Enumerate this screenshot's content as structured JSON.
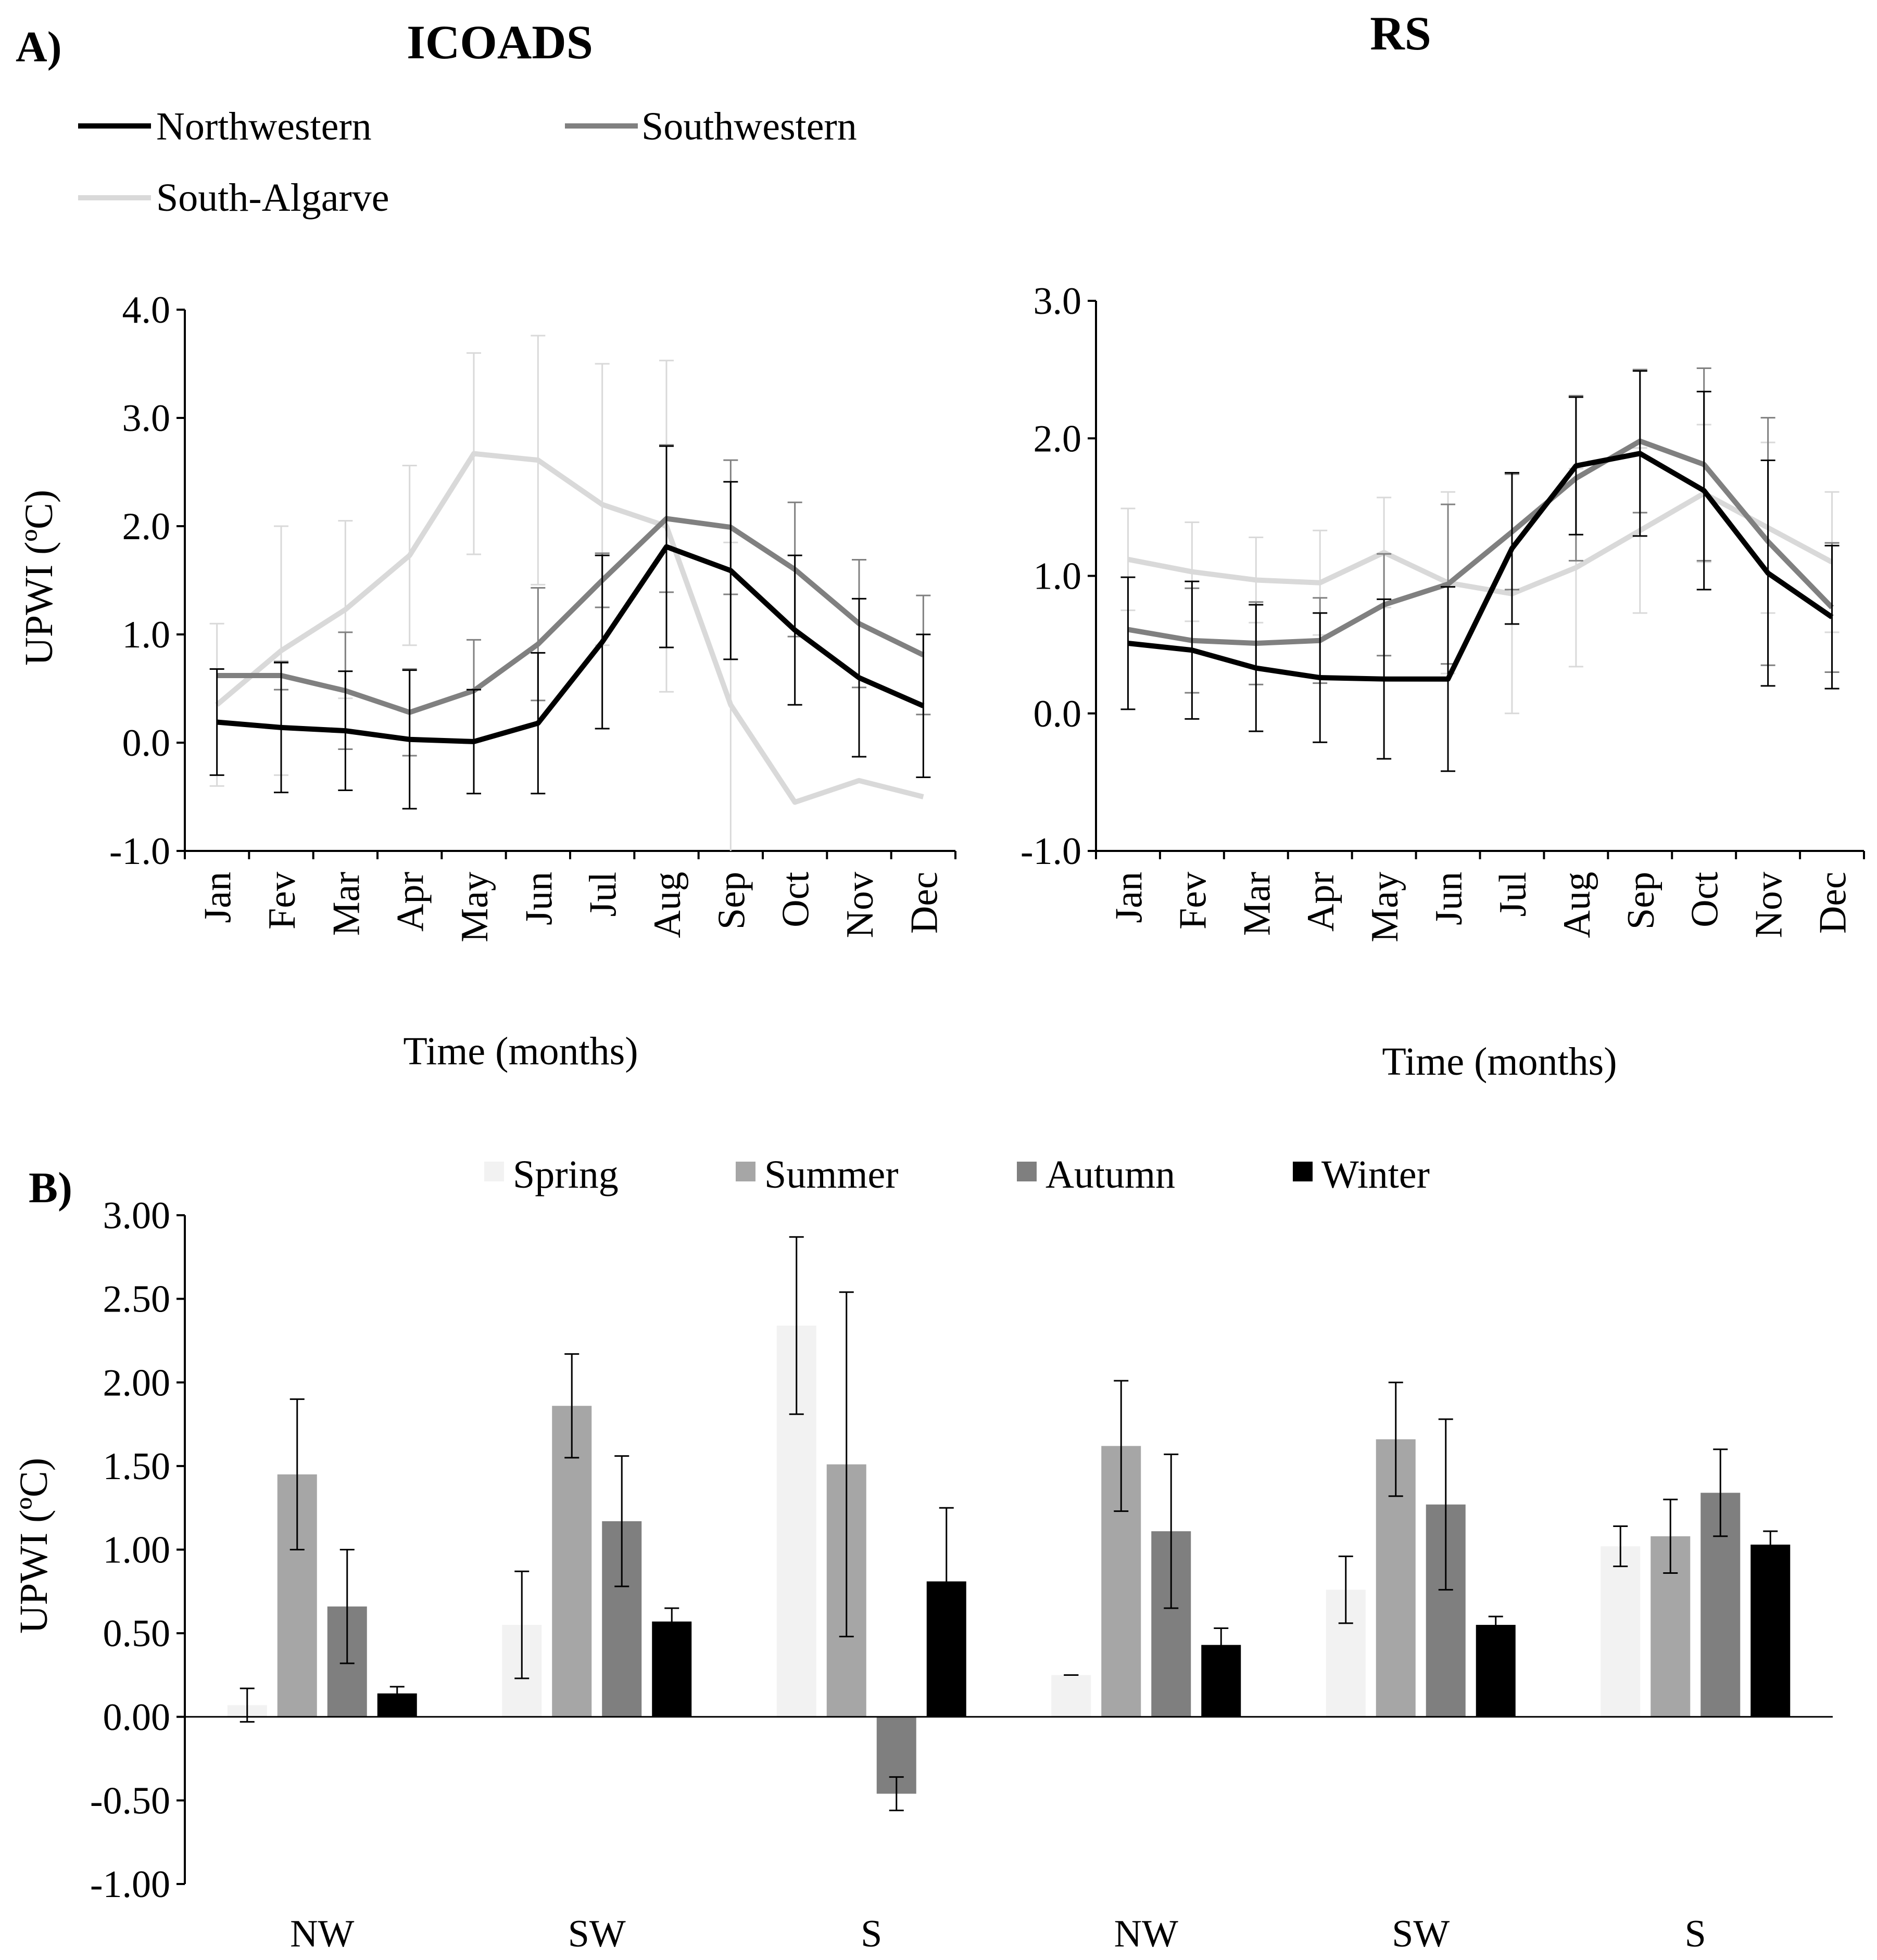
{
  "figure": {
    "panel_a_label": "A)",
    "panel_b_label": "B)"
  },
  "chart_data": [
    {
      "id": "icoads",
      "type": "line",
      "title": "ICOADS",
      "xlabel": "Time (months)",
      "ylabel": "UPWI (ºC)",
      "ylim": [
        -1.0,
        4.0
      ],
      "yticks": [
        "4.0",
        "3.0",
        "2.0",
        "1.0",
        "0.0",
        "-1.0"
      ],
      "ytick_values": [
        4.0,
        3.0,
        2.0,
        1.0,
        0.0,
        -1.0
      ],
      "categories": [
        "Jan",
        "Fev",
        "Mar",
        "Apr",
        "May",
        "Jun",
        "Jul",
        "Aug",
        "Sep",
        "Oct",
        "Nov",
        "Dec"
      ],
      "series": [
        {
          "name": "Northwestern",
          "color": "#000000",
          "values": [
            0.19,
            0.14,
            0.11,
            0.03,
            0.01,
            0.18,
            0.93,
            1.81,
            1.59,
            1.04,
            0.6,
            0.34
          ],
          "errors": [
            0.49,
            0.6,
            0.55,
            0.64,
            0.48,
            0.65,
            0.8,
            0.93,
            0.82,
            0.69,
            0.73,
            0.66
          ]
        },
        {
          "name": "Southwestern",
          "color": "#808080",
          "values": [
            0.62,
            0.62,
            0.48,
            0.28,
            0.48,
            0.91,
            1.5,
            2.07,
            1.99,
            1.6,
            1.1,
            0.81
          ],
          "errors": [
            0.0,
            0.13,
            0.54,
            0.4,
            0.47,
            0.52,
            0.25,
            0.68,
            0.62,
            0.62,
            0.59,
            0.55
          ]
        },
        {
          "name": "South-Algarve",
          "color": "#d9d9d9",
          "values": [
            0.35,
            0.85,
            1.23,
            1.73,
            2.67,
            2.61,
            2.2,
            2.0,
            0.35,
            -0.55,
            -0.35,
            -0.5
          ],
          "errors": [
            0.75,
            1.15,
            0.82,
            0.83,
            0.93,
            1.15,
            1.3,
            1.53,
            1.5,
            0.0,
            0.0,
            0.0
          ]
        }
      ]
    },
    {
      "id": "rs",
      "type": "line",
      "title": "RS",
      "xlabel": "Time (months)",
      "ylabel": "",
      "ylim": [
        -1.0,
        3.0
      ],
      "yticks": [
        "3.0",
        "2.0",
        "1.0",
        "0.0",
        "-1.0"
      ],
      "ytick_values": [
        3.0,
        2.0,
        1.0,
        0.0,
        -1.0
      ],
      "categories": [
        "Jan",
        "Fev",
        "Mar",
        "Apr",
        "May",
        "Jun",
        "Jul",
        "Aug",
        "Sep",
        "Oct",
        "Nov",
        "Dec"
      ],
      "series": [
        {
          "name": "Northwestern",
          "color": "#000000",
          "values": [
            0.51,
            0.46,
            0.33,
            0.26,
            0.25,
            0.25,
            1.2,
            1.8,
            1.89,
            1.62,
            1.02,
            0.7
          ],
          "errors": [
            0.48,
            0.5,
            0.46,
            0.47,
            0.58,
            0.67,
            0.55,
            0.5,
            0.6,
            0.72,
            0.82,
            0.52
          ]
        },
        {
          "name": "Southwestern",
          "color": "#808080",
          "values": [
            0.61,
            0.53,
            0.51,
            0.53,
            0.79,
            0.94,
            1.32,
            1.71,
            1.98,
            1.81,
            1.25,
            0.77
          ],
          "errors": [
            0.0,
            0.38,
            0.3,
            0.31,
            0.37,
            0.58,
            0.42,
            0.6,
            0.52,
            0.7,
            0.9,
            0.47
          ]
        },
        {
          "name": "South-Algarve",
          "color": "#d9d9d9",
          "values": [
            1.12,
            1.03,
            0.97,
            0.95,
            1.17,
            0.95,
            0.87,
            1.06,
            1.33,
            1.6,
            1.35,
            1.1
          ],
          "errors": [
            0.37,
            0.36,
            0.31,
            0.38,
            0.4,
            0.66,
            0.87,
            0.72,
            0.6,
            0.5,
            0.62,
            0.51
          ]
        }
      ]
    },
    {
      "id": "seasonal",
      "type": "bar",
      "title": "",
      "xlabel": "",
      "ylabel": "UPWI (ºC)",
      "ylim": [
        -1.0,
        3.0
      ],
      "yticks": [
        "3.00",
        "2.50",
        "2.00",
        "1.50",
        "1.00",
        "0.50",
        "0.00",
        "-0.50",
        "-1.00"
      ],
      "ytick_values": [
        3.0,
        2.5,
        2.0,
        1.5,
        1.0,
        0.5,
        0.0,
        -0.5,
        -1.0
      ],
      "categories": [
        "NW",
        "SW",
        "S",
        "NW",
        "SW",
        "S"
      ],
      "series": [
        {
          "name": "Spring",
          "color": "#f2f2f2",
          "values": [
            0.07,
            0.55,
            2.34,
            0.25,
            0.76,
            1.02
          ],
          "errors": [
            0.1,
            0.32,
            0.53,
            0.0,
            0.2,
            0.12
          ]
        },
        {
          "name": "Summer",
          "color": "#a6a6a6",
          "values": [
            1.45,
            1.86,
            1.51,
            1.62,
            1.66,
            1.08
          ],
          "errors": [
            0.45,
            0.31,
            1.03,
            0.39,
            0.34,
            0.22
          ]
        },
        {
          "name": "Autumn",
          "color": "#7f7f7f",
          "values": [
            0.66,
            1.17,
            -0.46,
            1.11,
            1.27,
            1.34
          ],
          "errors": [
            0.34,
            0.39,
            0.1,
            0.46,
            0.51,
            0.26
          ]
        },
        {
          "name": "Winter",
          "color": "#000000",
          "values": [
            0.14,
            0.57,
            0.81,
            0.43,
            0.55,
            1.03
          ],
          "errors": [
            0.04,
            0.08,
            0.44,
            0.1,
            0.05,
            0.08
          ]
        }
      ]
    }
  ]
}
